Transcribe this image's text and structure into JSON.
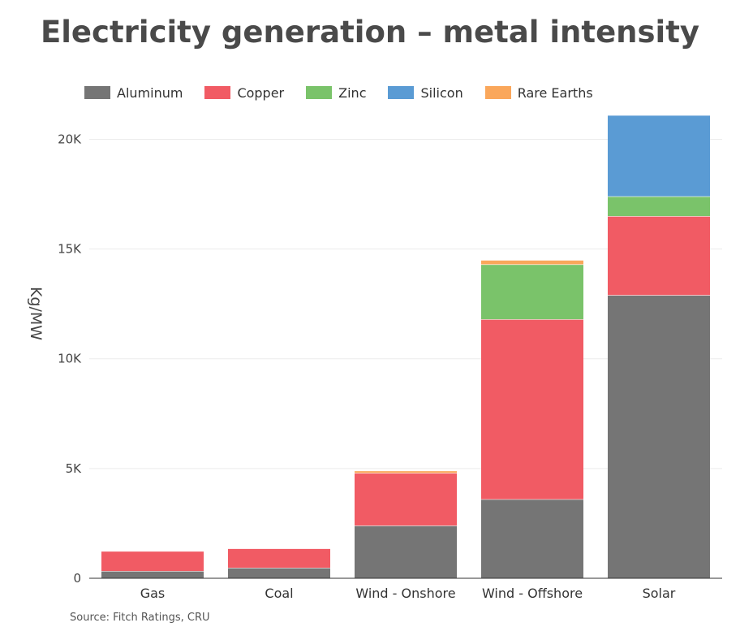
{
  "chart_data": {
    "type": "bar",
    "stacked": true,
    "title": "Electricity generation – metal intensity",
    "ylabel": "Kg/MW",
    "xlabel": "",
    "ylim": [
      0,
      21000
    ],
    "yticks": [
      0,
      5000,
      10000,
      15000,
      20000
    ],
    "ytick_labels": [
      "0",
      "5K",
      "10K",
      "15K",
      "20K"
    ],
    "grid": true,
    "legend_position": "top-left",
    "categories": [
      "Gas",
      "Coal",
      "Wind - Onshore",
      "Wind - Offshore",
      "Solar"
    ],
    "series": [
      {
        "name": "Aluminum",
        "color": "#757575",
        "values": [
          330,
          480,
          2400,
          3600,
          12900
        ]
      },
      {
        "name": "Copper",
        "color": "#f15b64",
        "values": [
          910,
          880,
          2400,
          8200,
          3600
        ]
      },
      {
        "name": "Zinc",
        "color": "#7ac36a",
        "values": [
          0,
          0,
          0,
          2500,
          900
        ]
      },
      {
        "name": "Silicon",
        "color": "#5a9bd4",
        "values": [
          0,
          0,
          0,
          0,
          3700
        ]
      },
      {
        "name": "Rare Earths",
        "color": "#faa75b",
        "values": [
          0,
          0,
          100,
          200,
          0
        ]
      }
    ]
  },
  "source": "Source: Fitch Ratings, CRU"
}
